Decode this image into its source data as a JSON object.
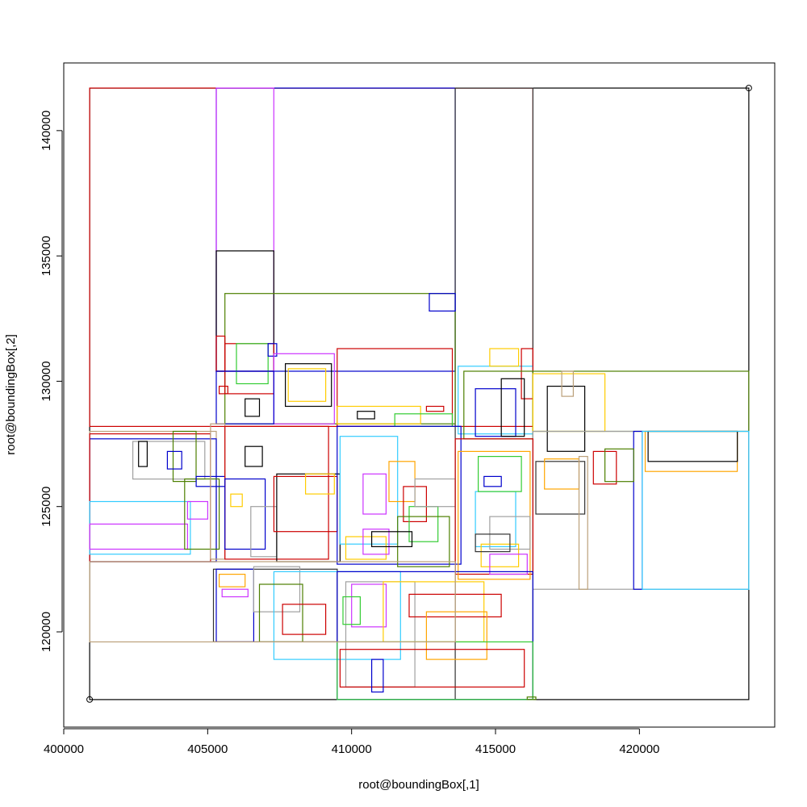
{
  "chart_data": {
    "type": "rectangles",
    "title": "",
    "xlabel": "root@boundingBox[,1]",
    "ylabel": "root@boundingBox[,2]",
    "xlim": [
      400000,
      424700
    ],
    "ylim": [
      116200,
      142700
    ],
    "xticks": [
      400000,
      405000,
      410000,
      415000,
      420000
    ],
    "xtick_labels": [
      "400000",
      "405000",
      "410000",
      "415000",
      "420000"
    ],
    "yticks": [
      120000,
      125000,
      130000,
      135000,
      140000
    ],
    "ytick_labels": [
      "120000",
      "125000",
      "130000",
      "135000",
      "140000"
    ],
    "grid": false,
    "legend": "none",
    "corner_points": [
      {
        "x": 400900,
        "y": 117300
      },
      {
        "x": 423800,
        "y": 141700
      }
    ],
    "rectangles": [
      {
        "x0": 400900,
        "y0": 117300,
        "x1": 423800,
        "y1": 141700,
        "color": "#000000"
      },
      {
        "x0": 400900,
        "y0": 128200,
        "x1": 416300,
        "y1": 141700,
        "color": "#cc0000"
      },
      {
        "x0": 405300,
        "y0": 130400,
        "x1": 413600,
        "y1": 141700,
        "color": "#0000cc"
      },
      {
        "x0": 405300,
        "y0": 130400,
        "x1": 407300,
        "y1": 141700,
        "color": "#cc33ff"
      },
      {
        "x0": 413600,
        "y0": 117300,
        "x1": 416300,
        "y1": 141700,
        "color": "#333333"
      },
      {
        "x0": 405300,
        "y0": 130400,
        "x1": 407300,
        "y1": 135200,
        "color": "#000000"
      },
      {
        "x0": 405600,
        "y0": 128300,
        "x1": 413600,
        "y1": 133500,
        "color": "#4d7f00"
      },
      {
        "x0": 412700,
        "y0": 132800,
        "x1": 413600,
        "y1": 133500,
        "color": "#0000cc"
      },
      {
        "x0": 405300,
        "y0": 130400,
        "x1": 405600,
        "y1": 131800,
        "color": "#cc0000"
      },
      {
        "x0": 405600,
        "y0": 129500,
        "x1": 407300,
        "y1": 131500,
        "color": "#cc0000"
      },
      {
        "x0": 406000,
        "y0": 129900,
        "x1": 407100,
        "y1": 131500,
        "color": "#33cc33"
      },
      {
        "x0": 407100,
        "y0": 131000,
        "x1": 407400,
        "y1": 131500,
        "color": "#0000cc"
      },
      {
        "x0": 407300,
        "y0": 128300,
        "x1": 409400,
        "y1": 131100,
        "color": "#cc33ff"
      },
      {
        "x0": 407700,
        "y0": 129000,
        "x1": 409300,
        "y1": 130700,
        "color": "#000000"
      },
      {
        "x0": 407800,
        "y0": 129200,
        "x1": 409100,
        "y1": 130500,
        "color": "#ffcc00"
      },
      {
        "x0": 405300,
        "y0": 128300,
        "x1": 407300,
        "y1": 130400,
        "color": "#0000cc"
      },
      {
        "x0": 405400,
        "y0": 129500,
        "x1": 405700,
        "y1": 129800,
        "color": "#cc0000"
      },
      {
        "x0": 406300,
        "y0": 128600,
        "x1": 406800,
        "y1": 129300,
        "color": "#000000"
      },
      {
        "x0": 409500,
        "y0": 128200,
        "x1": 413500,
        "y1": 131300,
        "color": "#cc0000"
      },
      {
        "x0": 410200,
        "y0": 128500,
        "x1": 410800,
        "y1": 128800,
        "color": "#000000"
      },
      {
        "x0": 412600,
        "y0": 128800,
        "x1": 413200,
        "y1": 129000,
        "color": "#cc0000"
      },
      {
        "x0": 409500,
        "y0": 128300,
        "x1": 412400,
        "y1": 129000,
        "color": "#ffcc00"
      },
      {
        "x0": 411500,
        "y0": 128200,
        "x1": 413500,
        "y1": 128700,
        "color": "#33cc33"
      },
      {
        "x0": 413700,
        "y0": 127900,
        "x1": 416300,
        "y1": 130600,
        "color": "#33ccff"
      },
      {
        "x0": 414800,
        "y0": 130600,
        "x1": 415800,
        "y1": 131300,
        "color": "#ffcc00"
      },
      {
        "x0": 415900,
        "y0": 129300,
        "x1": 416300,
        "y1": 131300,
        "color": "#cc0000"
      },
      {
        "x0": 413900,
        "y0": 127700,
        "x1": 416300,
        "y1": 130400,
        "color": "#4d7f00"
      },
      {
        "x0": 414300,
        "y0": 127800,
        "x1": 415700,
        "y1": 129700,
        "color": "#0000cc"
      },
      {
        "x0": 415200,
        "y0": 127800,
        "x1": 416000,
        "y1": 130100,
        "color": "#000000"
      },
      {
        "x0": 416300,
        "y0": 128000,
        "x1": 423800,
        "y1": 130400,
        "color": "#4d7f00"
      },
      {
        "x0": 416300,
        "y0": 128000,
        "x1": 418800,
        "y1": 130300,
        "color": "#ffcc00"
      },
      {
        "x0": 416800,
        "y0": 127200,
        "x1": 418100,
        "y1": 129800,
        "color": "#000000"
      },
      {
        "x0": 417300,
        "y0": 129400,
        "x1": 417700,
        "y1": 130400,
        "color": "#bba07a"
      },
      {
        "x0": 416300,
        "y0": 121700,
        "x1": 423800,
        "y1": 128000,
        "color": "#a0a0a0"
      },
      {
        "x0": 420200,
        "y0": 126400,
        "x1": 423400,
        "y1": 128000,
        "color": "#ffa500"
      },
      {
        "x0": 420300,
        "y0": 126800,
        "x1": 423400,
        "y1": 128000,
        "color": "#000000"
      },
      {
        "x0": 419800,
        "y0": 121700,
        "x1": 420100,
        "y1": 128000,
        "color": "#0000cc"
      },
      {
        "x0": 420100,
        "y0": 121700,
        "x1": 423800,
        "y1": 128000,
        "color": "#33ccff"
      },
      {
        "x0": 416400,
        "y0": 124700,
        "x1": 418100,
        "y1": 126800,
        "color": "#333333"
      },
      {
        "x0": 416700,
        "y0": 125700,
        "x1": 417900,
        "y1": 126900,
        "color": "#ffa500"
      },
      {
        "x0": 417900,
        "y0": 121700,
        "x1": 418200,
        "y1": 127000,
        "color": "#bba07a"
      },
      {
        "x0": 418400,
        "y0": 125900,
        "x1": 419200,
        "y1": 127200,
        "color": "#cc0000"
      },
      {
        "x0": 418800,
        "y0": 126000,
        "x1": 419800,
        "y1": 127300,
        "color": "#4d7f00"
      },
      {
        "x0": 400900,
        "y0": 122800,
        "x1": 405300,
        "y1": 128000,
        "color": "#bba07a"
      },
      {
        "x0": 400900,
        "y0": 122800,
        "x1": 405300,
        "y1": 127700,
        "color": "#0000cc"
      },
      {
        "x0": 400900,
        "y0": 122800,
        "x1": 405100,
        "y1": 127900,
        "color": "#cc0000"
      },
      {
        "x0": 400900,
        "y0": 123100,
        "x1": 404400,
        "y1": 125200,
        "color": "#33ccff"
      },
      {
        "x0": 400900,
        "y0": 123300,
        "x1": 404300,
        "y1": 124300,
        "color": "#cc33ff"
      },
      {
        "x0": 402400,
        "y0": 126100,
        "x1": 404900,
        "y1": 127600,
        "color": "#a0a0a0"
      },
      {
        "x0": 402600,
        "y0": 126600,
        "x1": 402900,
        "y1": 127600,
        "color": "#000000"
      },
      {
        "x0": 403800,
        "y0": 126000,
        "x1": 404600,
        "y1": 128000,
        "color": "#4d7f00"
      },
      {
        "x0": 404200,
        "y0": 123300,
        "x1": 405400,
        "y1": 126100,
        "color": "#4d7f00"
      },
      {
        "x0": 404300,
        "y0": 124500,
        "x1": 405000,
        "y1": 125200,
        "color": "#cc33ff"
      },
      {
        "x0": 403600,
        "y0": 126500,
        "x1": 404100,
        "y1": 127200,
        "color": "#0000cc"
      },
      {
        "x0": 404600,
        "y0": 125800,
        "x1": 405600,
        "y1": 126200,
        "color": "#0000cc"
      },
      {
        "x0": 405100,
        "y0": 122900,
        "x1": 405600,
        "y1": 128300,
        "color": "#bba07a"
      },
      {
        "x0": 405600,
        "y0": 122900,
        "x1": 409200,
        "y1": 128200,
        "color": "#cc0000"
      },
      {
        "x0": 405600,
        "y0": 123300,
        "x1": 407000,
        "y1": 126100,
        "color": "#0000cc"
      },
      {
        "x0": 405800,
        "y0": 125000,
        "x1": 406200,
        "y1": 125500,
        "color": "#ffcc00"
      },
      {
        "x0": 406300,
        "y0": 126600,
        "x1": 406900,
        "y1": 127400,
        "color": "#000000"
      },
      {
        "x0": 406500,
        "y0": 123000,
        "x1": 407400,
        "y1": 125000,
        "color": "#a0a0a0"
      },
      {
        "x0": 407400,
        "y0": 122800,
        "x1": 409600,
        "y1": 126300,
        "color": "#000000"
      },
      {
        "x0": 407300,
        "y0": 124000,
        "x1": 409500,
        "y1": 126200,
        "color": "#cc0000"
      },
      {
        "x0": 408400,
        "y0": 125500,
        "x1": 409400,
        "y1": 126300,
        "color": "#ffcc00"
      },
      {
        "x0": 409500,
        "y0": 122700,
        "x1": 413800,
        "y1": 128200,
        "color": "#0000cc"
      },
      {
        "x0": 409600,
        "y0": 123500,
        "x1": 411600,
        "y1": 127800,
        "color": "#33ccff"
      },
      {
        "x0": 410400,
        "y0": 124700,
        "x1": 411200,
        "y1": 126300,
        "color": "#cc33ff"
      },
      {
        "x0": 411300,
        "y0": 125200,
        "x1": 412200,
        "y1": 126800,
        "color": "#ffa500"
      },
      {
        "x0": 411800,
        "y0": 124400,
        "x1": 412600,
        "y1": 125800,
        "color": "#cc0000"
      },
      {
        "x0": 412000,
        "y0": 123600,
        "x1": 413000,
        "y1": 125000,
        "color": "#33cc33"
      },
      {
        "x0": 412200,
        "y0": 125000,
        "x1": 413600,
        "y1": 126100,
        "color": "#a0a0a0"
      },
      {
        "x0": 411600,
        "y0": 122600,
        "x1": 413400,
        "y1": 124600,
        "color": "#4d7f00"
      },
      {
        "x0": 409800,
        "y0": 122900,
        "x1": 411200,
        "y1": 123800,
        "color": "#ffcc00"
      },
      {
        "x0": 410400,
        "y0": 123100,
        "x1": 411300,
        "y1": 124100,
        "color": "#cc33ff"
      },
      {
        "x0": 410700,
        "y0": 123400,
        "x1": 412100,
        "y1": 124000,
        "color": "#000000"
      },
      {
        "x0": 413600,
        "y0": 122300,
        "x1": 416300,
        "y1": 127700,
        "color": "#cc0000"
      },
      {
        "x0": 413700,
        "y0": 122100,
        "x1": 416200,
        "y1": 127200,
        "color": "#ffa500"
      },
      {
        "x0": 414300,
        "y0": 123400,
        "x1": 415700,
        "y1": 125600,
        "color": "#33ccff"
      },
      {
        "x0": 414400,
        "y0": 125600,
        "x1": 415900,
        "y1": 127000,
        "color": "#33cc33"
      },
      {
        "x0": 414600,
        "y0": 125800,
        "x1": 415200,
        "y1": 126200,
        "color": "#0000cc"
      },
      {
        "x0": 414800,
        "y0": 123300,
        "x1": 416200,
        "y1": 124600,
        "color": "#a0a0a0"
      },
      {
        "x0": 414500,
        "y0": 122600,
        "x1": 415800,
        "y1": 123500,
        "color": "#ffcc00"
      },
      {
        "x0": 414800,
        "y0": 122300,
        "x1": 416100,
        "y1": 123100,
        "color": "#cc33ff"
      },
      {
        "x0": 414300,
        "y0": 123200,
        "x1": 415500,
        "y1": 123900,
        "color": "#333333"
      },
      {
        "x0": 405200,
        "y0": 119600,
        "x1": 409500,
        "y1": 122500,
        "color": "#333333"
      },
      {
        "x0": 405300,
        "y0": 119600,
        "x1": 406600,
        "y1": 122500,
        "color": "#0000cc"
      },
      {
        "x0": 405400,
        "y0": 121800,
        "x1": 406300,
        "y1": 122300,
        "color": "#ffa500"
      },
      {
        "x0": 405500,
        "y0": 121400,
        "x1": 406400,
        "y1": 121700,
        "color": "#cc33ff"
      },
      {
        "x0": 406600,
        "y0": 120800,
        "x1": 408200,
        "y1": 122600,
        "color": "#a0a0a0"
      },
      {
        "x0": 407300,
        "y0": 118900,
        "x1": 411700,
        "y1": 122400,
        "color": "#33ccff"
      },
      {
        "x0": 406800,
        "y0": 119600,
        "x1": 408300,
        "y1": 121900,
        "color": "#4d7f00"
      },
      {
        "x0": 409500,
        "y0": 117300,
        "x1": 416300,
        "y1": 122400,
        "color": "#0000cc"
      },
      {
        "x0": 409800,
        "y0": 117800,
        "x1": 412200,
        "y1": 122000,
        "color": "#a0a0a0"
      },
      {
        "x0": 410000,
        "y0": 120200,
        "x1": 411200,
        "y1": 121900,
        "color": "#cc33ff"
      },
      {
        "x0": 411100,
        "y0": 119600,
        "x1": 414600,
        "y1": 122000,
        "color": "#ffcc00"
      },
      {
        "x0": 412000,
        "y0": 120600,
        "x1": 415200,
        "y1": 121500,
        "color": "#cc0000"
      },
      {
        "x0": 412600,
        "y0": 118900,
        "x1": 414700,
        "y1": 120800,
        "color": "#ffa500"
      },
      {
        "x0": 409500,
        "y0": 117300,
        "x1": 416300,
        "y1": 119600,
        "color": "#33cc33"
      },
      {
        "x0": 409600,
        "y0": 117800,
        "x1": 416000,
        "y1": 119300,
        "color": "#cc0000"
      },
      {
        "x0": 410700,
        "y0": 117600,
        "x1": 411100,
        "y1": 118900,
        "color": "#0000cc"
      },
      {
        "x0": 400900,
        "y0": 119600,
        "x1": 413600,
        "y1": 122800,
        "color": "#bba07a"
      },
      {
        "x0": 407600,
        "y0": 119900,
        "x1": 409100,
        "y1": 121100,
        "color": "#cc0000"
      },
      {
        "x0": 409700,
        "y0": 120300,
        "x1": 410300,
        "y1": 121400,
        "color": "#33cc33"
      },
      {
        "x0": 416100,
        "y0": 117300,
        "x1": 416400,
        "y1": 117400,
        "color": "#4d7f00"
      }
    ]
  }
}
